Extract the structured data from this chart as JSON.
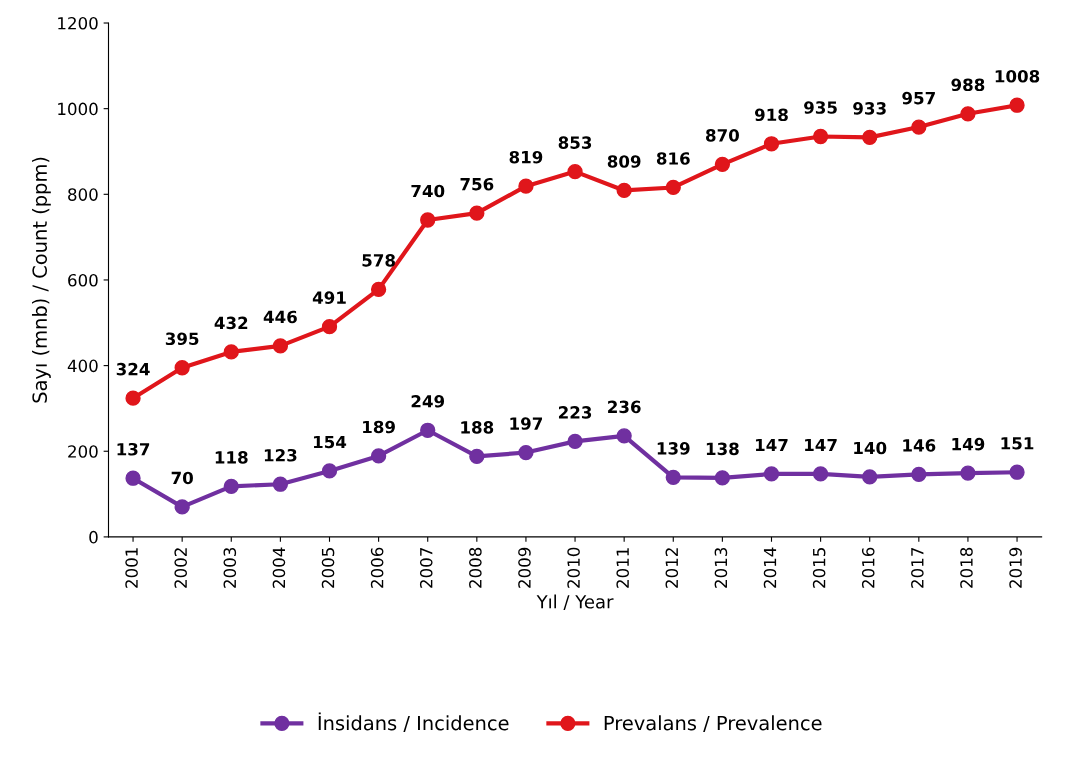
{
  "chart_data": {
    "type": "line",
    "xlabel": "Yıl / Year",
    "ylabel": "Sayı (mnb) / Count (ppm)",
    "categories": [
      "2001",
      "2002",
      "2003",
      "2004",
      "2005",
      "2006",
      "2007",
      "2008",
      "2009",
      "2010",
      "2011",
      "2012",
      "2013",
      "2014",
      "2015",
      "2016",
      "2017",
      "2018",
      "2019"
    ],
    "series": [
      {
        "name": "İnsidans / Incidence",
        "color": "#7030a0",
        "values": [
          137,
          70,
          118,
          123,
          154,
          189,
          249,
          188,
          197,
          223,
          236,
          139,
          138,
          147,
          147,
          140,
          146,
          149,
          151
        ]
      },
      {
        "name": "Prevalans / Prevalence",
        "color": "#e0161b",
        "values": [
          324,
          395,
          432,
          446,
          491,
          578,
          740,
          756,
          819,
          853,
          809,
          816,
          870,
          918,
          935,
          933,
          957,
          988,
          1008
        ]
      }
    ],
    "ylim": [
      0,
      1200
    ],
    "yticks": [
      0,
      200,
      400,
      600,
      800,
      1000,
      1200
    ],
    "data_labels": true,
    "marker": "circle",
    "line_style": "solid",
    "grid": false,
    "legend": "bottom"
  }
}
